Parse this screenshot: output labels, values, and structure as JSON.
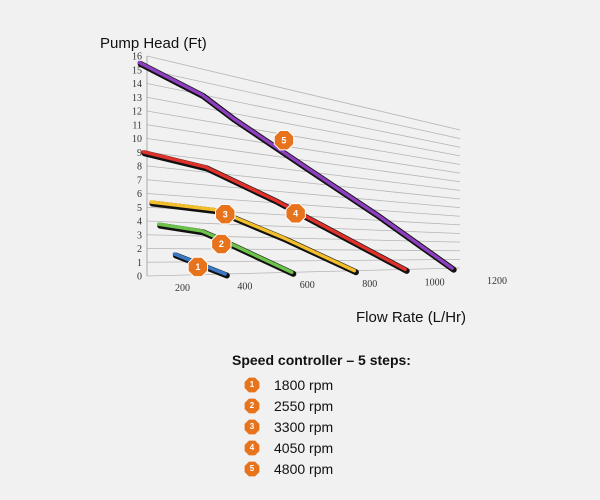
{
  "chart_data": {
    "type": "line",
    "title": "",
    "ylabel": "Pump Head (Ft)",
    "xlabel": "Flow Rate (L/Hr)",
    "y_ticks": [
      "0",
      "1",
      "2",
      "3",
      "4",
      "5",
      "6",
      "7",
      "8",
      "9",
      "10",
      "11",
      "12",
      "13",
      "14",
      "15",
      "16"
    ],
    "x_ticks": [
      "200",
      "400",
      "600",
      "800",
      "1000",
      "1200"
    ],
    "ylim": [
      0,
      16
    ],
    "xlim": [
      200,
      1200
    ],
    "grid": true,
    "series": [
      {
        "name": "1800 rpm",
        "badge": "1",
        "color": "#3a78c8",
        "x": [
          270,
          400
        ],
        "y": [
          1.6,
          0
        ]
      },
      {
        "name": "2550 rpm",
        "badge": "2",
        "color": "#6cc24a",
        "x": [
          230,
          340,
          380,
          570
        ],
        "y": [
          3.8,
          3.4,
          2.9,
          0
        ]
      },
      {
        "name": "3300 rpm",
        "badge": "3",
        "color": "#f2be2c",
        "x": [
          210,
          380,
          430,
          550,
          730
        ],
        "y": [
          5.4,
          5.1,
          4.5,
          3.0,
          0
        ]
      },
      {
        "name": "4050 rpm",
        "badge": "4",
        "color": "#e0312b",
        "x": [
          190,
          350,
          530,
          860
        ],
        "y": [
          9.0,
          8.4,
          6.2,
          0
        ]
      },
      {
        "name": "4800 rpm",
        "badge": "5",
        "color": "#8e3fbf",
        "x": [
          180,
          340,
          420,
          600,
          790,
          980
        ],
        "y": [
          15.4,
          14.0,
          12.6,
          9.5,
          5.5,
          0
        ]
      }
    ],
    "badge_points": [
      {
        "x": 330,
        "y": 0.6
      },
      {
        "x": 390,
        "y": 2.4
      },
      {
        "x": 400,
        "y": 4.8
      },
      {
        "x": 580,
        "y": 5.2
      },
      {
        "x": 550,
        "y": 11.5
      }
    ],
    "badge_color": "#e8731d"
  },
  "legend": {
    "title": "Speed controller – 5 steps:",
    "items": [
      {
        "badge": "1",
        "label": "1800 rpm"
      },
      {
        "badge": "2",
        "label": "2550 rpm"
      },
      {
        "badge": "3",
        "label": "3300 rpm"
      },
      {
        "badge": "4",
        "label": "4050 rpm"
      },
      {
        "badge": "5",
        "label": "4800 rpm"
      }
    ]
  }
}
